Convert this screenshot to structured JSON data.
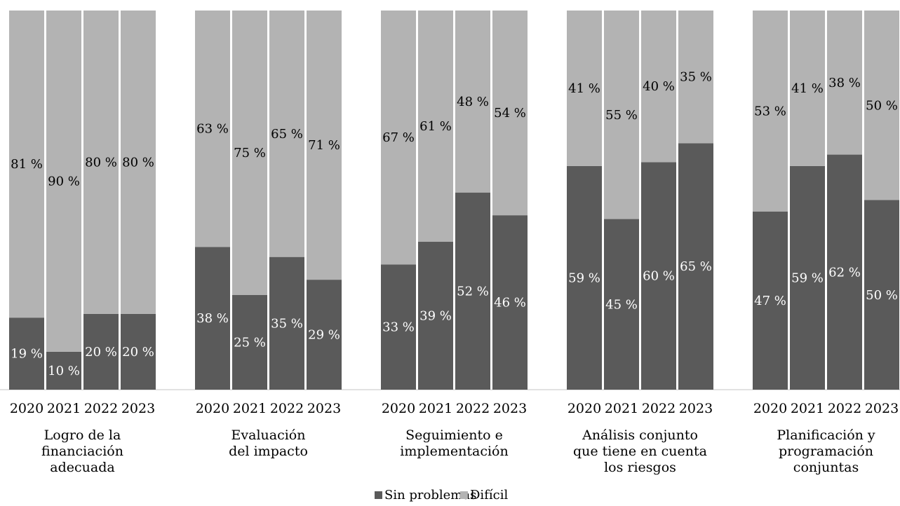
{
  "chart_data": {
    "type": "bar",
    "stacked": true,
    "normalized": true,
    "ylim": [
      0,
      100
    ],
    "grid": false,
    "legend_position": "bottom",
    "colors": {
      "Sin problemas": "#5a5a5a",
      "Difícil": "#b3b3b3",
      "axis": "#d9d9d9"
    },
    "years": [
      "2020",
      "2021",
      "2022",
      "2023"
    ],
    "groups": [
      {
        "label_lines": [
          "Logro de la",
          "financiación",
          "adecuada"
        ],
        "series": [
          {
            "name": "Sin problemas",
            "values": [
              19,
              10,
              20,
              20
            ],
            "labels": [
              "19 %",
              "10 %",
              "20 %",
              "20 %"
            ]
          },
          {
            "name": "Difícil",
            "values": [
              81,
              90,
              80,
              80
            ],
            "labels": [
              "81 %",
              "90 %",
              "80 %",
              "80 %"
            ]
          }
        ]
      },
      {
        "label_lines": [
          "Evaluación",
          "del impacto"
        ],
        "series": [
          {
            "name": "Sin problemas",
            "values": [
              38,
              25,
              35,
              29
            ],
            "labels": [
              "38 %",
              "25 %",
              "35 %",
              "29 %"
            ]
          },
          {
            "name": "Difícil",
            "values": [
              63,
              75,
              65,
              71
            ],
            "labels": [
              "63 %",
              "75 %",
              "65 %",
              "71 %"
            ]
          }
        ]
      },
      {
        "label_lines": [
          "Seguimiento e",
          "implementación"
        ],
        "series": [
          {
            "name": "Sin problemas",
            "values": [
              33,
              39,
              52,
              46
            ],
            "labels": [
              "33 %",
              "39 %",
              "52 %",
              "46 %"
            ]
          },
          {
            "name": "Difícil",
            "values": [
              67,
              61,
              48,
              54
            ],
            "labels": [
              "67 %",
              "61 %",
              "48 %",
              "54 %"
            ]
          }
        ]
      },
      {
        "label_lines": [
          "Análisis conjunto",
          "que tiene en cuenta",
          "los riesgos"
        ],
        "series": [
          {
            "name": "Sin problemas",
            "values": [
              59,
              45,
              60,
              65
            ],
            "labels": [
              "59 %",
              "45 %",
              "60 %",
              "65 %"
            ]
          },
          {
            "name": "Difícil",
            "values": [
              41,
              55,
              40,
              35
            ],
            "labels": [
              "41 %",
              "55 %",
              "40 %",
              "35 %"
            ]
          }
        ]
      },
      {
        "label_lines": [
          "Planificación y",
          "programación",
          "conjuntas"
        ],
        "series": [
          {
            "name": "Sin problemas",
            "values": [
              47,
              59,
              62,
              50
            ],
            "labels": [
              "47 %",
              "59 %",
              "62 %",
              "50 %"
            ]
          },
          {
            "name": "Difícil",
            "values": [
              53,
              41,
              38,
              50
            ],
            "labels": [
              "53 %",
              "41 %",
              "38 %",
              "50 %"
            ]
          }
        ]
      }
    ],
    "legend": [
      {
        "name": "Sin problemas",
        "label": "Sin problemas"
      },
      {
        "name": "Difícil",
        "label": "Difícil"
      }
    ]
  }
}
